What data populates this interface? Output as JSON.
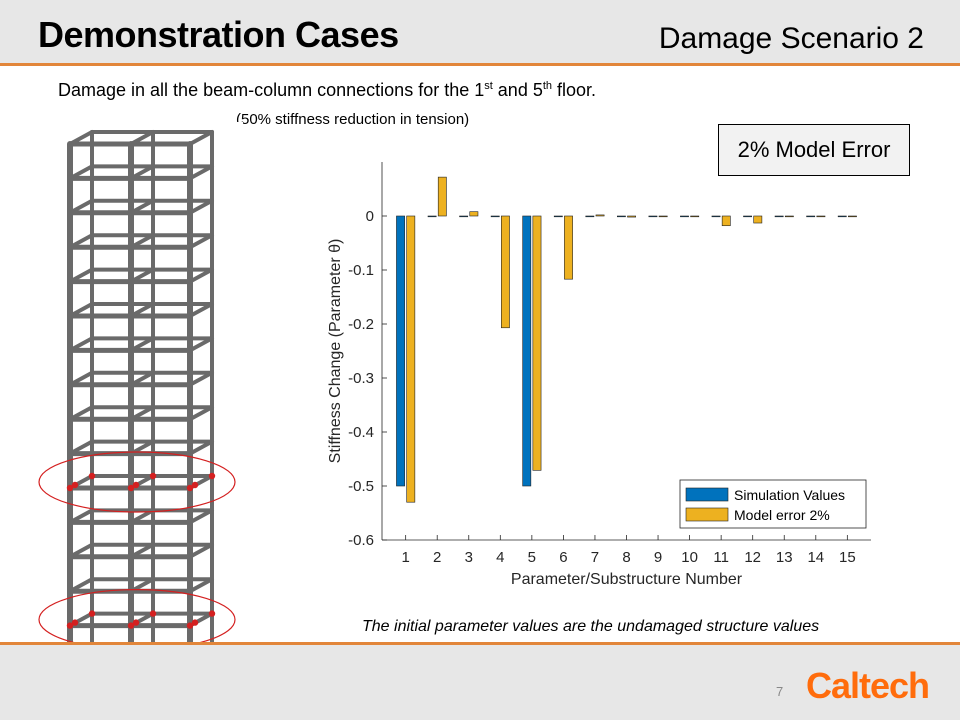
{
  "slide": {
    "title": "Demonstration Cases",
    "scenario": "Damage Scenario 2",
    "description_main": "Damage in all the beam-column connections for the 1",
    "description_sup1": "st",
    "description_mid": " and 5",
    "description_sup2": "th",
    "description_end": " floor.",
    "description_sub": "(50% stiffness reduction in tension)",
    "model_error_label": "2% Model Error",
    "footnote": "The initial parameter values are the undamaged structure values",
    "page_number": "7",
    "logo_text": "Caltech"
  },
  "colors": {
    "accent": "#e2863a",
    "logo": "#ff6c0c",
    "series_simulation": "#0072bd",
    "series_model_error": "#edb120",
    "damage_marker": "#d42020"
  },
  "chart_data": {
    "type": "bar",
    "categories": [
      "1",
      "2",
      "3",
      "4",
      "5",
      "6",
      "7",
      "8",
      "9",
      "10",
      "11",
      "12",
      "13",
      "14",
      "15"
    ],
    "series": [
      {
        "name": "Simulation Values",
        "values": [
          -0.5,
          0,
          0,
          0,
          -0.5,
          0,
          0,
          0,
          0,
          0,
          0,
          0,
          0,
          0,
          0
        ]
      },
      {
        "name": "Model error 2%",
        "values": [
          -0.53,
          0.072,
          0.008,
          -0.207,
          -0.471,
          -0.117,
          0.002,
          -0.002,
          0.0,
          0.0,
          -0.018,
          -0.013,
          0.0,
          0.0,
          0.0
        ]
      }
    ],
    "xlabel": "Parameter/Substructure Number",
    "ylabel": "Stiffness Change (Parameter θ)",
    "ylim": [
      -0.6,
      0.1
    ],
    "yticks": [
      "0",
      "-0.1",
      "-0.2",
      "-0.3",
      "-0.4",
      "-0.5",
      "-0.6"
    ],
    "legend_position": "bottom-right",
    "grid": false
  }
}
